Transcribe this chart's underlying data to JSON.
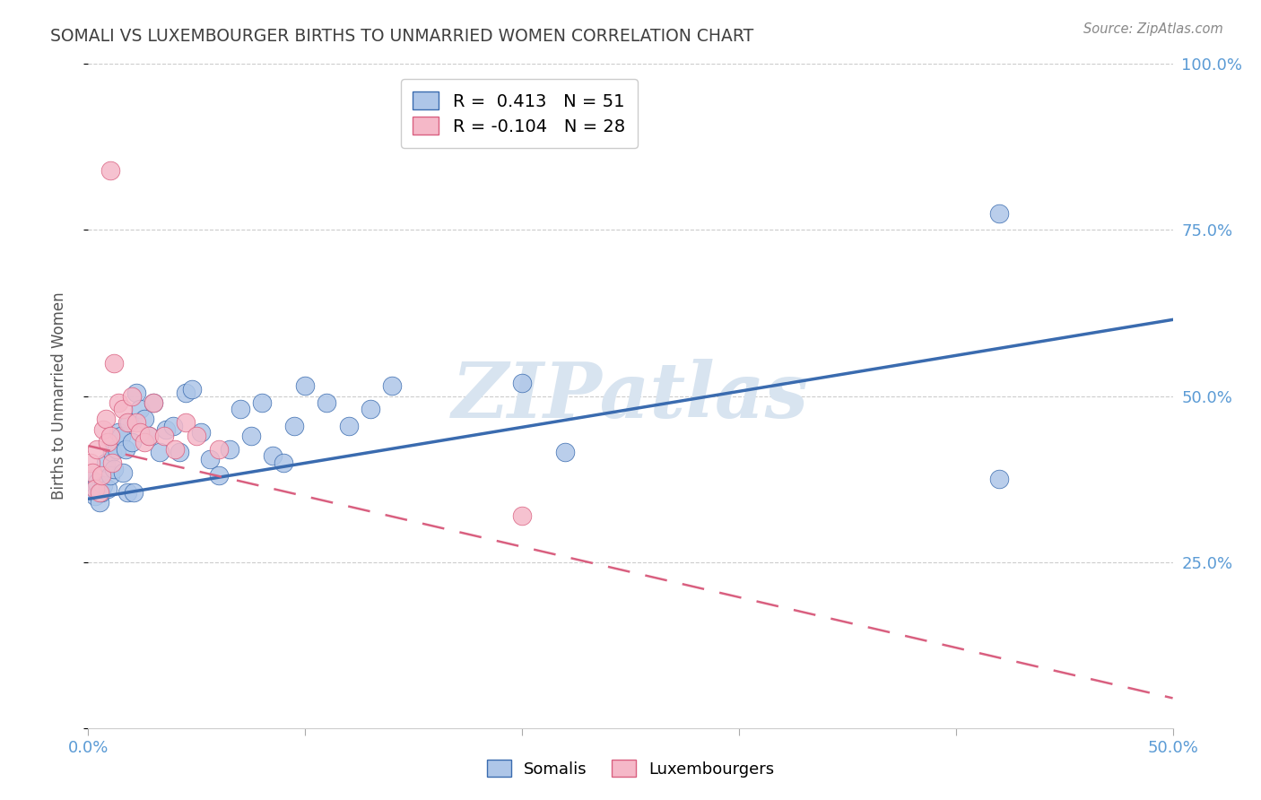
{
  "title": "SOMALI VS LUXEMBOURGER BIRTHS TO UNMARRIED WOMEN CORRELATION CHART",
  "source": "Source: ZipAtlas.com",
  "ylabel": "Births to Unmarried Women",
  "xlim": [
    0.0,
    0.5
  ],
  "ylim": [
    0.0,
    1.0
  ],
  "yticks": [
    0.0,
    0.25,
    0.5,
    0.75,
    1.0
  ],
  "ytick_labels": [
    "",
    "25.0%",
    "50.0%",
    "75.0%",
    "100.0%"
  ],
  "somali_R": 0.413,
  "somali_N": 51,
  "luxembourger_R": -0.104,
  "luxembourger_N": 28,
  "somali_color": "#aec6e8",
  "luxembourger_color": "#f5b8c8",
  "somali_line_color": "#3a6baf",
  "luxembourger_line_color": "#d96080",
  "background_color": "#ffffff",
  "grid_color": "#cccccc",
  "watermark_color": "#d8e4f0",
  "title_color": "#404040",
  "axis_label_color": "#5b9bd5",
  "somali_line_y0": 0.345,
  "somali_line_y1": 0.615,
  "luxembourger_line_y0": 0.425,
  "luxembourger_line_y1": 0.045,
  "somali_x": [
    0.001,
    0.002,
    0.003,
    0.004,
    0.005,
    0.006,
    0.007,
    0.008,
    0.009,
    0.01,
    0.011,
    0.012,
    0.013,
    0.014,
    0.015,
    0.016,
    0.017,
    0.018,
    0.019,
    0.02,
    0.021,
    0.022,
    0.024,
    0.026,
    0.028,
    0.03,
    0.033,
    0.036,
    0.039,
    0.042,
    0.045,
    0.048,
    0.052,
    0.056,
    0.06,
    0.065,
    0.07,
    0.075,
    0.08,
    0.085,
    0.09,
    0.095,
    0.1,
    0.11,
    0.12,
    0.13,
    0.14,
    0.2,
    0.22,
    0.42,
    0.42
  ],
  "somali_y": [
    0.375,
    0.36,
    0.35,
    0.37,
    0.34,
    0.355,
    0.365,
    0.4,
    0.36,
    0.38,
    0.415,
    0.39,
    0.42,
    0.445,
    0.44,
    0.385,
    0.42,
    0.355,
    0.46,
    0.43,
    0.355,
    0.505,
    0.48,
    0.465,
    0.44,
    0.49,
    0.415,
    0.45,
    0.455,
    0.415,
    0.505,
    0.51,
    0.445,
    0.405,
    0.38,
    0.42,
    0.48,
    0.44,
    0.49,
    0.41,
    0.4,
    0.455,
    0.515,
    0.49,
    0.455,
    0.48,
    0.515,
    0.52,
    0.415,
    0.775,
    0.375
  ],
  "luxembourger_x": [
    0.001,
    0.002,
    0.003,
    0.004,
    0.005,
    0.006,
    0.007,
    0.008,
    0.009,
    0.01,
    0.011,
    0.012,
    0.014,
    0.016,
    0.018,
    0.02,
    0.022,
    0.024,
    0.026,
    0.028,
    0.03,
    0.035,
    0.04,
    0.045,
    0.05,
    0.06,
    0.2,
    0.01
  ],
  "luxembourger_y": [
    0.4,
    0.385,
    0.36,
    0.42,
    0.355,
    0.38,
    0.45,
    0.465,
    0.43,
    0.44,
    0.4,
    0.55,
    0.49,
    0.48,
    0.46,
    0.5,
    0.46,
    0.445,
    0.43,
    0.44,
    0.49,
    0.44,
    0.42,
    0.46,
    0.44,
    0.42,
    0.32,
    0.84
  ]
}
